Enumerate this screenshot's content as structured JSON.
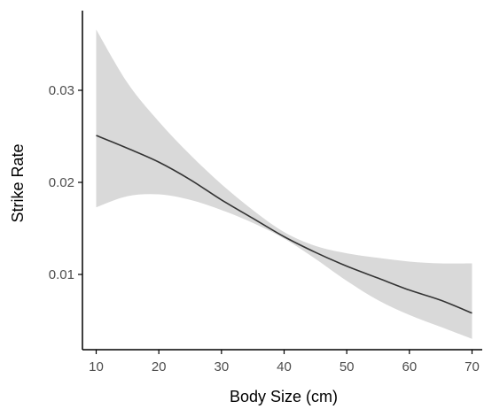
{
  "chart_data": {
    "type": "line",
    "title": "",
    "xlabel": "Body Size (cm)",
    "ylabel": "Strike Rate",
    "xlim": [
      8.8,
      71.2
    ],
    "ylim": [
      0.002,
      0.0385
    ],
    "x_ticks": [
      10,
      20,
      30,
      40,
      50,
      60,
      70
    ],
    "x_tick_labels": [
      "10",
      "20",
      "30",
      "40",
      "50",
      "60",
      "70"
    ],
    "y_ticks": [
      0.01,
      0.02,
      0.03
    ],
    "y_tick_labels": [
      "0.01",
      "0.02",
      "0.03"
    ],
    "grid": false,
    "legend": "none",
    "series": [
      {
        "x": [
          10,
          15,
          20,
          25,
          30,
          35,
          40,
          45,
          50,
          55,
          60,
          65,
          70
        ],
        "values": [
          0.0251,
          0.0237,
          0.0222,
          0.0203,
          0.0181,
          0.0161,
          0.0141,
          0.0124,
          0.0109,
          0.0096,
          0.0083,
          0.0072,
          0.0058
        ],
        "ci_lower": [
          0.0173,
          0.0185,
          0.0187,
          0.0181,
          0.017,
          0.0156,
          0.0139,
          0.0117,
          0.0093,
          0.0072,
          0.0056,
          0.0043,
          0.003
        ],
        "ci_upper": [
          0.0366,
          0.0308,
          0.0266,
          0.023,
          0.0198,
          0.017,
          0.0146,
          0.0131,
          0.0123,
          0.0118,
          0.0114,
          0.0112,
          0.0112
        ]
      }
    ],
    "colors": {
      "line": "#333333",
      "band": "#d9d9d9",
      "axis": "#000000",
      "tick_text": "#4d4d4d"
    }
  }
}
